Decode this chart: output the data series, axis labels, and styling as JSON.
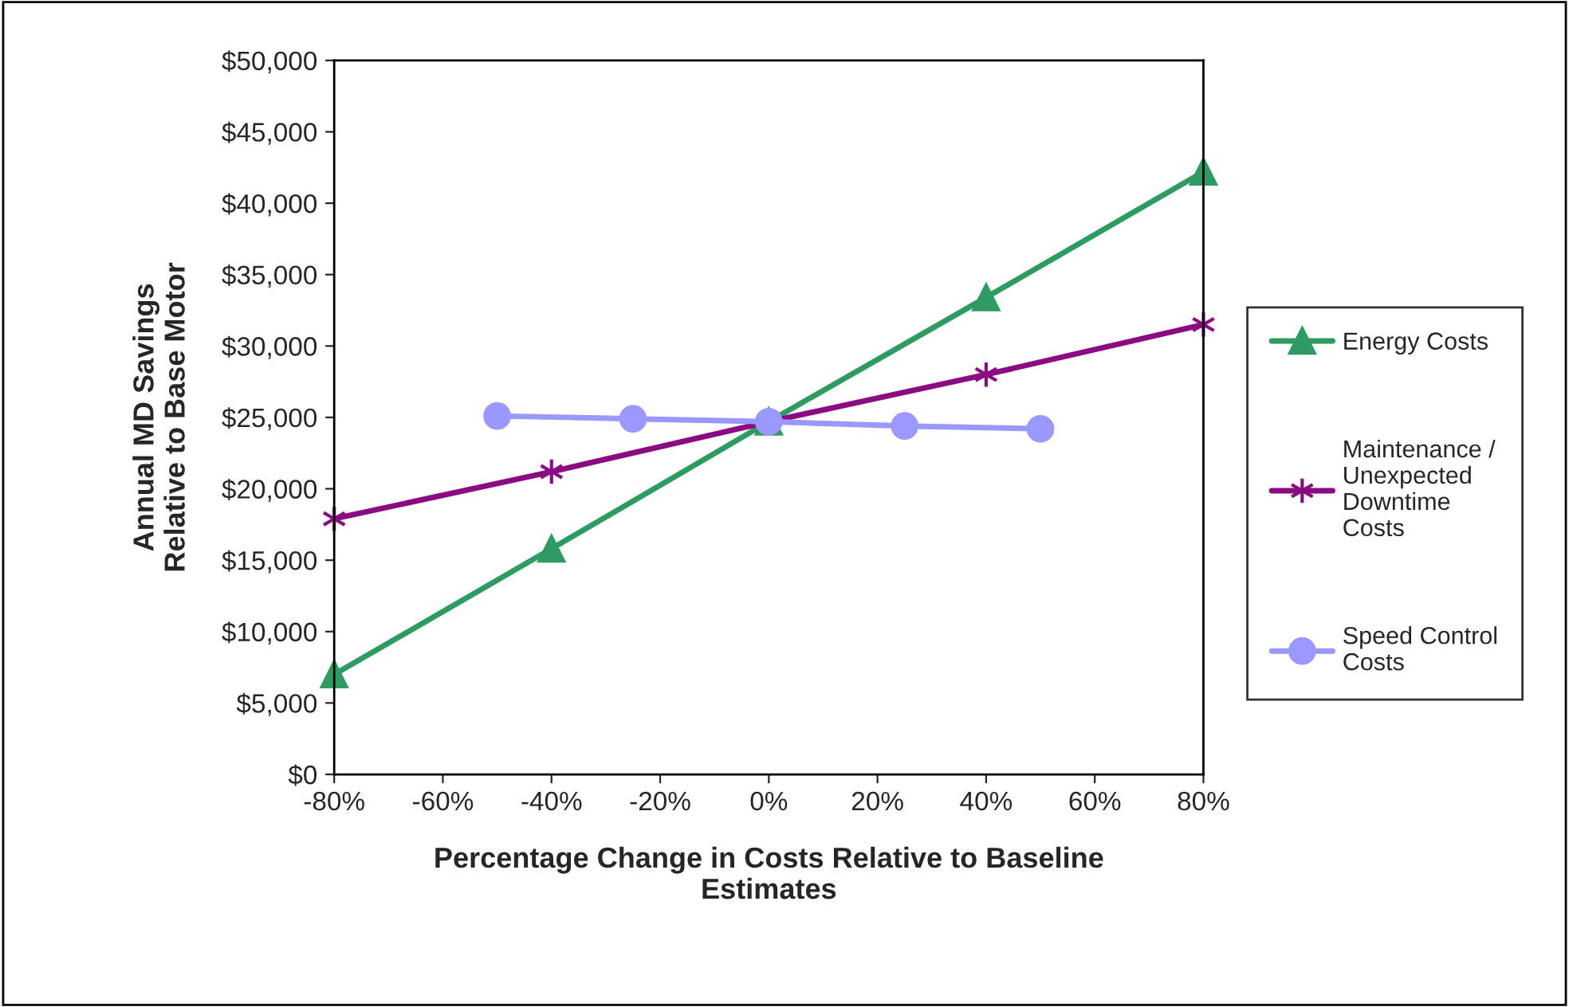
{
  "chart_data": {
    "type": "line",
    "xlabel": "Percentage Change in Costs Relative to Baseline\nEstimates",
    "ylabel": "Annual MD Savings\nRelative to Base Motor",
    "series": [
      {
        "name": "Energy Costs",
        "color": "#2e9b62",
        "marker": "triangle",
        "x": [
          -80,
          -40,
          0,
          40,
          80
        ],
        "values": [
          7000,
          15800,
          24700,
          33400,
          42200
        ]
      },
      {
        "name": "Maintenance /\nUnexpected\nDowntime\nCosts",
        "color": "#8b0b82",
        "marker": "cross",
        "x": [
          -80,
          -40,
          0,
          40,
          80
        ],
        "values": [
          17900,
          21200,
          24700,
          28000,
          31500
        ]
      },
      {
        "name": "Speed Control\nCosts",
        "color": "#9999ff",
        "marker": "circle",
        "x": [
          -50,
          -25,
          0,
          25,
          50
        ],
        "values": [
          25100,
          24900,
          24700,
          24400,
          24200
        ]
      }
    ],
    "xlim": [
      -80,
      80
    ],
    "xticks": [
      {
        "value": -80,
        "label": "-80%"
      },
      {
        "value": -60,
        "label": "-60%"
      },
      {
        "value": -40,
        "label": "-40%"
      },
      {
        "value": -20,
        "label": "-20%"
      },
      {
        "value": 0,
        "label": "0%"
      },
      {
        "value": 20,
        "label": "20%"
      },
      {
        "value": 40,
        "label": "40%"
      },
      {
        "value": 60,
        "label": "60%"
      },
      {
        "value": 80,
        "label": "80%"
      }
    ],
    "ylim": [
      0,
      50000
    ],
    "yticks": [
      {
        "value": 0,
        "label": "$0"
      },
      {
        "value": 5000,
        "label": "$5,000"
      },
      {
        "value": 10000,
        "label": "$10,000"
      },
      {
        "value": 15000,
        "label": "$15,000"
      },
      {
        "value": 20000,
        "label": "$20,000"
      },
      {
        "value": 25000,
        "label": "$25,000"
      },
      {
        "value": 30000,
        "label": "$30,000"
      },
      {
        "value": 35000,
        "label": "$35,000"
      },
      {
        "value": 40000,
        "label": "$40,000"
      },
      {
        "value": 45000,
        "label": "$45,000"
      },
      {
        "value": 50000,
        "label": "$50,000"
      }
    ],
    "grid": false,
    "legend": "right",
    "line_style": "solid"
  }
}
